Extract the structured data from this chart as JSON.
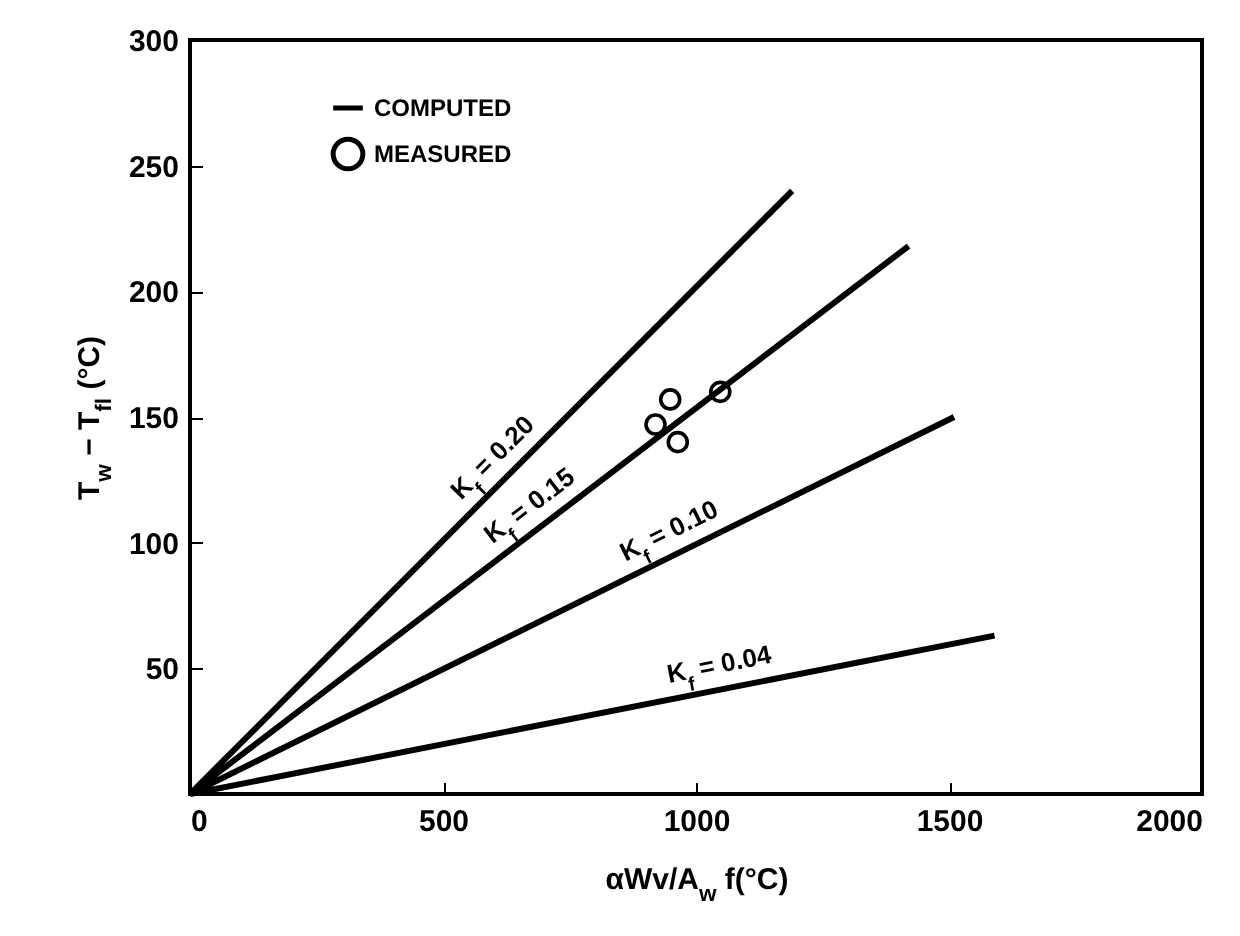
{
  "chart_data": {
    "type": "line",
    "xlabel": "αWv/A$_{w}$ f(°C)",
    "ylabel": "T$_{w}$ − T$_{fl}$ (°C)",
    "xlim": [
      0,
      2000
    ],
    "ylim": [
      0,
      300
    ],
    "xticks": [
      0,
      500,
      1000,
      1500,
      2000
    ],
    "yticks": [
      50,
      100,
      150,
      200,
      250,
      300
    ],
    "legend": "top left",
    "series": [
      {
        "name": "COMPUTED",
        "type": "line",
        "color": "#000000",
        "x": [
          0,
          1190,
          null,
          0,
          1420,
          null,
          0,
          1510,
          null,
          0,
          1590
        ],
        "values": [
          0,
          240,
          null,
          0,
          218,
          null,
          0,
          150,
          null,
          0,
          63
        ]
      },
      {
        "name": "MEASURED",
        "type": "scatter",
        "marker": "circle",
        "color": "#000000",
        "x": [
          920,
          949,
          964,
          1048
        ],
        "values": [
          147,
          157,
          140,
          160
        ]
      }
    ],
    "annotations": [
      {
        "text": "K$_{f}$ = 0.20",
        "x": 632,
        "y": 127
      },
      {
        "text": "K$_{f}$ = 0.15",
        "x": 700,
        "y": 107
      },
      {
        "text": "K$_{f}$ = 0.10",
        "x": 968,
        "y": 96
      },
      {
        "text": "K$_{f}$ = 0.04",
        "x": 1055,
        "y": 42
      }
    ]
  }
}
